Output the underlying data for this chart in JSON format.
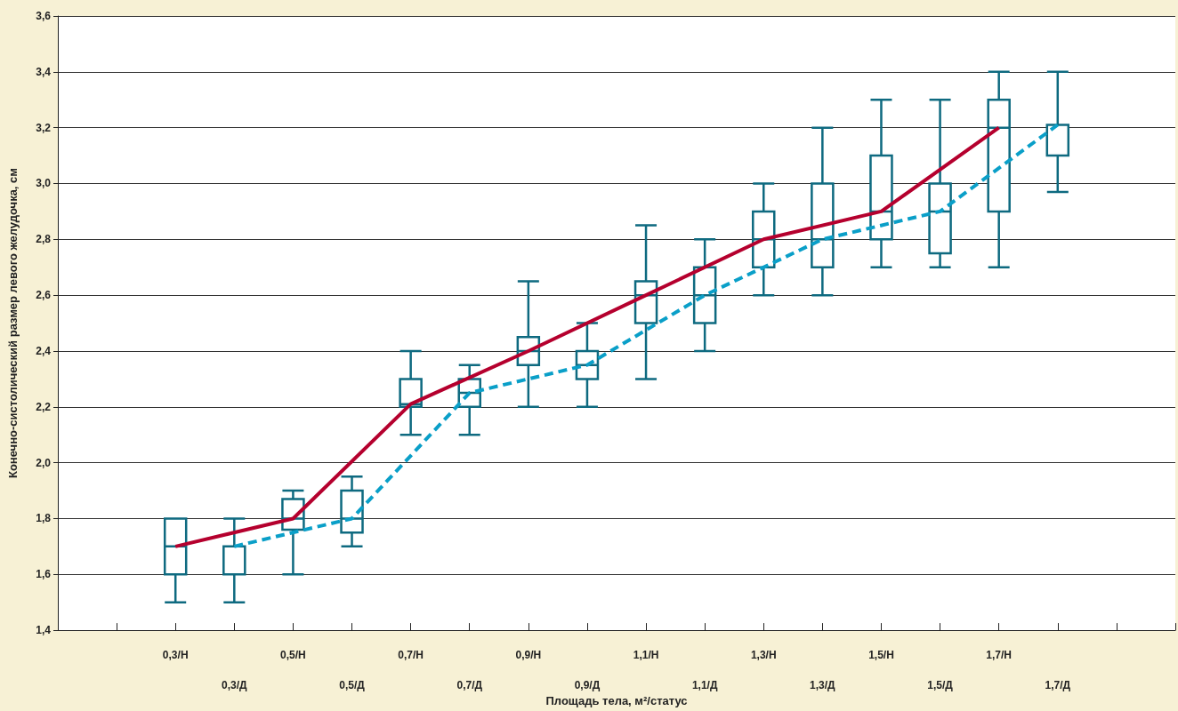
{
  "chart_data": {
    "type": "box",
    "xlabel": "Площадь тела, м²/статус",
    "ylabel": "Конечно-систолический размер левого желудочка, см",
    "categories": [
      null,
      null,
      "0,3/Н",
      "0,3/Д",
      "0,5/Н",
      "0,5/Д",
      "0,7/Н",
      "0,7/Д",
      "0,9/Н",
      "0,9/Д",
      "1,1/Н",
      "1,1/Д",
      "1,3/Н",
      "1,3/Д",
      "1,5/Н",
      "1,5/Д",
      "1,7/Н",
      "1,7/Д",
      null,
      null
    ],
    "ylim": [
      1.4,
      3.6
    ],
    "yticks": [
      {
        "value": 1.4,
        "label": "1,4"
      },
      {
        "value": 1.6,
        "label": "1,6"
      },
      {
        "value": 1.8,
        "label": "1,8"
      },
      {
        "value": 2.0,
        "label": "2,0"
      },
      {
        "value": 2.2,
        "label": "2,2"
      },
      {
        "value": 2.4,
        "label": "2,4"
      },
      {
        "value": 2.6,
        "label": "2,6"
      },
      {
        "value": 2.8,
        "label": "2,8"
      },
      {
        "value": 3.0,
        "label": "3,0"
      },
      {
        "value": 3.2,
        "label": "3,2"
      },
      {
        "value": 3.4,
        "label": "3,4"
      },
      {
        "value": 3.6,
        "label": "3,6"
      }
    ],
    "grid": "y",
    "series": [
      {
        "color": "#0e6a80",
        "boxes": [
          null,
          null,
          {
            "low": 1.5,
            "q1": 1.6,
            "median": 1.7,
            "q3": 1.8,
            "high": 1.8
          },
          {
            "low": 1.5,
            "q1": 1.6,
            "median": 1.7,
            "q3": 1.7,
            "high": 1.8
          },
          {
            "low": 1.6,
            "q1": 1.76,
            "median": 1.8,
            "q3": 1.87,
            "high": 1.9
          },
          {
            "low": 1.7,
            "q1": 1.75,
            "median": 1.8,
            "q3": 1.9,
            "high": 1.95
          },
          {
            "low": 2.1,
            "q1": 2.2,
            "median": 2.21,
            "q3": 2.3,
            "high": 2.4
          },
          {
            "low": 2.1,
            "q1": 2.2,
            "median": 2.25,
            "q3": 2.3,
            "high": 2.35
          },
          {
            "low": 2.2,
            "q1": 2.35,
            "median": 2.4,
            "q3": 2.45,
            "high": 2.65
          },
          {
            "low": 2.2,
            "q1": 2.3,
            "median": 2.35,
            "q3": 2.4,
            "high": 2.5
          },
          {
            "low": 2.3,
            "q1": 2.5,
            "median": 2.6,
            "q3": 2.65,
            "high": 2.85
          },
          {
            "low": 2.4,
            "q1": 2.5,
            "median": 2.6,
            "q3": 2.7,
            "high": 2.8
          },
          {
            "low": 2.6,
            "q1": 2.7,
            "median": 2.8,
            "q3": 2.9,
            "high": 3.0
          },
          {
            "low": 2.6,
            "q1": 2.7,
            "median": 2.8,
            "q3": 3.0,
            "high": 3.2
          },
          {
            "low": 2.7,
            "q1": 2.8,
            "median": 2.9,
            "q3": 3.1,
            "high": 3.3
          },
          {
            "low": 2.7,
            "q1": 2.75,
            "median": 2.9,
            "q3": 3.0,
            "high": 3.3
          },
          {
            "low": 2.7,
            "q1": 2.9,
            "median": 3.2,
            "q3": 3.3,
            "high": 3.4
          },
          {
            "low": 2.97,
            "q1": 3.1,
            "median": 3.21,
            "q3": 3.21,
            "high": 3.4
          },
          null,
          null
        ]
      },
      {
        "type": "line",
        "color": "#b5002e",
        "line_style": "solid",
        "marker": "none",
        "values": [
          null,
          null,
          1.7,
          null,
          1.8,
          null,
          2.21,
          null,
          2.4,
          null,
          2.6,
          null,
          2.8,
          null,
          2.9,
          null,
          3.2,
          null,
          null,
          null
        ]
      },
      {
        "type": "line",
        "color": "#0a9fc8",
        "line_style": "dashed",
        "marker": "none",
        "values": [
          null,
          null,
          null,
          1.7,
          null,
          1.8,
          null,
          2.25,
          null,
          2.35,
          null,
          2.6,
          null,
          2.8,
          null,
          2.9,
          null,
          3.21,
          null,
          null
        ]
      }
    ]
  }
}
